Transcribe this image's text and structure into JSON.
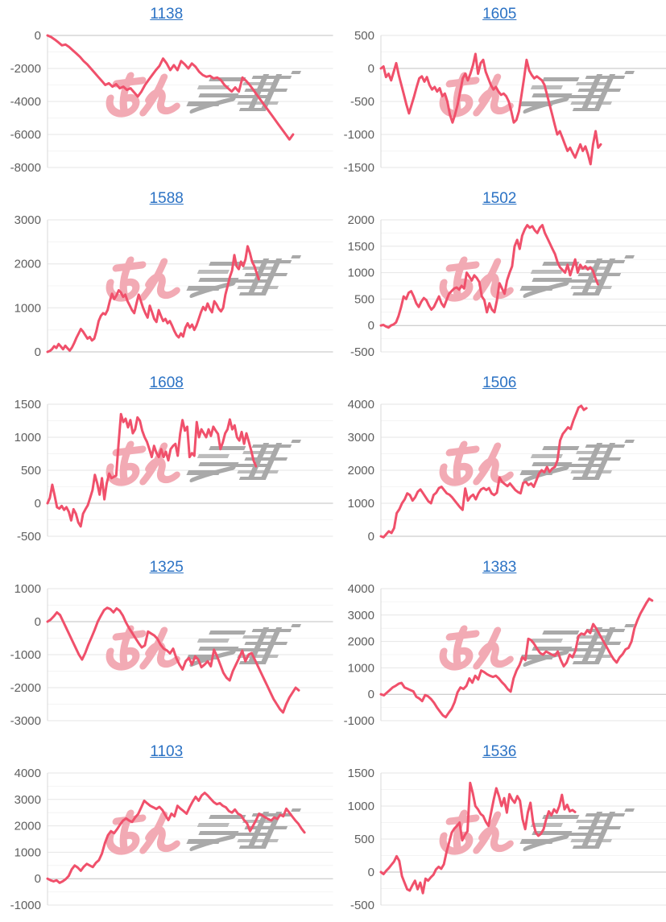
{
  "page": {
    "background": "#ffffff"
  },
  "colors": {
    "line": "#f0506b",
    "title_link": "#2b72c4",
    "axis_text": "#5f5f5f",
    "gridline": "#e6e6e6",
    "minor_gridline": "#f4f4f4",
    "zero_line": "#c0c0c0",
    "axis_line": "#d9d9d9",
    "watermark_pink": "#f2aab4",
    "watermark_gray": "#a9a9a9",
    "watermark_gray_light": "#bcbcbc"
  },
  "watermark": {
    "pink_text": "みん",
    "description": "pink-and-gray site logo watermark"
  },
  "chart_data": [
    {
      "type": "line",
      "title": "1138",
      "ylabel": "",
      "xlabel": "",
      "legend": false,
      "grid": true,
      "ylim": [
        -8000,
        0
      ],
      "yticks": [
        0,
        -2000,
        -4000,
        -6000,
        -8000
      ],
      "x_extent_frac": 0.86,
      "values": [
        0,
        -100,
        -250,
        -420,
        -600,
        -550,
        -700,
        -900,
        -1100,
        -1300,
        -1550,
        -1750,
        -2000,
        -2250,
        -2500,
        -2750,
        -3000,
        -2900,
        -3100,
        -2950,
        -3200,
        -3100,
        -3300,
        -3200,
        -3450,
        -3700,
        -3400,
        -3000,
        -2700,
        -2400,
        -2100,
        -1850,
        -1400,
        -1700,
        -2100,
        -1800,
        -2100,
        -1550,
        -1750,
        -2000,
        -1700,
        -1900,
        -2200,
        -2400,
        -2500,
        -2450,
        -2600,
        -2550,
        -2700,
        -3000,
        -3200,
        -3400,
        -3150,
        -3400,
        -2550,
        -2750,
        -3000,
        -3300,
        -3600,
        -3900,
        -4200,
        -4500,
        -4800,
        -5100,
        -5400,
        -5700,
        -6000,
        -6300,
        -6000
      ]
    },
    {
      "type": "line",
      "title": "1605",
      "ylabel": "",
      "xlabel": "",
      "legend": false,
      "grid": true,
      "ylim": [
        -1500,
        500
      ],
      "yticks": [
        500,
        0,
        -500,
        -1000,
        -1500
      ],
      "x_extent_frac": 0.77,
      "values": [
        0,
        30,
        -130,
        -80,
        -180,
        -50,
        80,
        -100,
        -250,
        -400,
        -550,
        -680,
        -550,
        -420,
        -280,
        -150,
        -120,
        -200,
        -130,
        -250,
        -320,
        -280,
        -350,
        -300,
        -420,
        -380,
        -500,
        -700,
        -820,
        -700,
        -550,
        -350,
        -150,
        -80,
        -180,
        -80,
        50,
        220,
        -80,
        80,
        130,
        -50,
        -150,
        -250,
        -320,
        -280,
        -350,
        -400,
        -380,
        -420,
        -500,
        -650,
        -820,
        -780,
        -650,
        -400,
        -150,
        130,
        -30,
        -100,
        -150,
        -120,
        -150,
        -180,
        -250,
        -400,
        -550,
        -700,
        -850,
        -1000,
        -950,
        -1050,
        -1150,
        -1250,
        -1200,
        -1280,
        -1350,
        -1250,
        -1150,
        -1250,
        -1180,
        -1300,
        -1450,
        -1150,
        -950,
        -1200,
        -1150
      ]
    },
    {
      "type": "line",
      "title": "1588",
      "ylabel": "",
      "xlabel": "",
      "legend": false,
      "grid": true,
      "ylim": [
        0,
        3000
      ],
      "yticks": [
        3000,
        2000,
        1000,
        0
      ],
      "x_extent_frac": 0.74,
      "values": [
        0,
        20,
        60,
        130,
        90,
        180,
        120,
        60,
        140,
        80,
        30,
        100,
        200,
        320,
        420,
        520,
        460,
        380,
        300,
        340,
        260,
        300,
        480,
        700,
        820,
        880,
        850,
        950,
        1150,
        1320,
        1200,
        1280,
        1400,
        1350,
        1250,
        1300,
        1150,
        1050,
        950,
        880,
        1100,
        1300,
        1150,
        1000,
        880,
        780,
        1050,
        900,
        750,
        680,
        950,
        820,
        700,
        750,
        650,
        700,
        600,
        480,
        380,
        330,
        420,
        350,
        550,
        650,
        550,
        620,
        500,
        600,
        750,
        900,
        1020,
        950,
        1100,
        980,
        900,
        1150,
        1080,
        980,
        920,
        1000,
        1300,
        1500,
        1700,
        1850,
        2200,
        1950,
        1880,
        2050,
        1950,
        2100,
        2400,
        2250,
        2050,
        1950,
        1800,
        1650
      ]
    },
    {
      "type": "line",
      "title": "1502",
      "ylabel": "",
      "xlabel": "",
      "legend": false,
      "grid": true,
      "ylim": [
        -500,
        2000
      ],
      "yticks": [
        2000,
        1500,
        1000,
        500,
        0,
        -500
      ],
      "x_extent_frac": 0.76,
      "values": [
        0,
        10,
        -20,
        -40,
        0,
        20,
        60,
        180,
        350,
        550,
        500,
        620,
        650,
        550,
        420,
        350,
        450,
        520,
        480,
        380,
        300,
        350,
        450,
        550,
        420,
        350,
        480,
        600,
        650,
        700,
        720,
        680,
        750,
        700,
        1000,
        930,
        850,
        950,
        900,
        820,
        550,
        480,
        250,
        420,
        300,
        250,
        480,
        800,
        700,
        600,
        850,
        1000,
        1120,
        1500,
        1620,
        1450,
        1700,
        1820,
        1900,
        1850,
        1880,
        1800,
        1750,
        1850,
        1900,
        1750,
        1650,
        1550,
        1450,
        1350,
        1200,
        1100,
        1050,
        1000,
        1150,
        950,
        1100,
        1250,
        1000,
        1150,
        1080,
        1120,
        1060,
        1100,
        1040,
        900,
        780
      ]
    },
    {
      "type": "line",
      "title": "1608",
      "ylabel": "",
      "xlabel": "",
      "legend": false,
      "grid": true,
      "ylim": [
        -500,
        1500
      ],
      "yticks": [
        1500,
        1000,
        500,
        0,
        -500
      ],
      "x_extent_frac": 0.73,
      "values": [
        0,
        80,
        280,
        120,
        -60,
        -80,
        -40,
        -100,
        -60,
        -130,
        -260,
        -90,
        -160,
        -290,
        -350,
        -160,
        -90,
        -30,
        80,
        200,
        430,
        300,
        130,
        380,
        60,
        300,
        450,
        380,
        400,
        420,
        900,
        1350,
        1230,
        1280,
        1150,
        1260,
        1060,
        1120,
        1300,
        1250,
        1100,
        1000,
        930,
        820,
        700,
        870,
        760,
        700,
        820,
        700,
        780,
        650,
        820,
        870,
        900,
        720,
        1050,
        1260,
        1100,
        1160,
        700,
        760,
        720,
        1230,
        1000,
        1120,
        1060,
        1000,
        1120,
        1020,
        1160,
        1100,
        1050,
        820,
        920,
        1060,
        1120,
        1270,
        1120,
        1180,
        1000,
        950,
        1080,
        900,
        1060,
        930,
        800,
        650,
        560
      ]
    },
    {
      "type": "line",
      "title": "1506",
      "ylabel": "",
      "xlabel": "",
      "legend": false,
      "grid": true,
      "ylim": [
        0,
        4000
      ],
      "yticks": [
        4000,
        3000,
        2000,
        1000,
        0
      ],
      "x_extent_frac": 0.72,
      "values": [
        0,
        -30,
        60,
        150,
        100,
        250,
        700,
        820,
        1000,
        1120,
        1300,
        1250,
        1080,
        1180,
        1350,
        1420,
        1300,
        1180,
        1060,
        1000,
        1250,
        1320,
        1460,
        1500,
        1400,
        1300,
        1260,
        1180,
        1080,
        980,
        880,
        800,
        1450,
        1080,
        1200,
        1260,
        1120,
        1300,
        1420,
        1460,
        1400,
        1460,
        1300,
        1250,
        1320,
        1780,
        1650,
        1580,
        1520,
        1600,
        1500,
        1400,
        1340,
        1300,
        1620,
        1650,
        1550,
        1600,
        1500,
        1700,
        1900,
        2000,
        1940,
        2100,
        1950,
        2050,
        2100,
        2300,
        2900,
        3100,
        3200,
        3300,
        3250,
        3500,
        3700,
        3900,
        3950,
        3830,
        3880
      ]
    },
    {
      "type": "line",
      "title": "1325",
      "ylabel": "",
      "xlabel": "",
      "legend": false,
      "grid": true,
      "ylim": [
        -3000,
        1000
      ],
      "yticks": [
        1000,
        0,
        -1000,
        -2000,
        -3000
      ],
      "x_extent_frac": 0.88,
      "values": [
        0,
        60,
        160,
        280,
        200,
        0,
        -200,
        -400,
        -600,
        -800,
        -1000,
        -1150,
        -950,
        -700,
        -480,
        -250,
        0,
        180,
        350,
        420,
        380,
        280,
        400,
        330,
        180,
        -30,
        -200,
        -350,
        -500,
        -650,
        -780,
        -720,
        -300,
        -360,
        -420,
        -520,
        -700,
        -820,
        -870,
        -960,
        -820,
        -1100,
        -1300,
        -1450,
        -1200,
        -1100,
        -1300,
        -1050,
        -1150,
        -1380,
        -1300,
        -1200,
        -1350,
        -850,
        -1050,
        -1300,
        -1550,
        -1700,
        -1780,
        -1500,
        -1300,
        -1100,
        -880,
        -1200,
        -1000,
        -950,
        -1150,
        -1350,
        -1550,
        -1750,
        -1950,
        -2150,
        -2350,
        -2500,
        -2650,
        -2750,
        -2500,
        -2300,
        -2150,
        -2000,
        -2080
      ]
    },
    {
      "type": "line",
      "title": "1383",
      "ylabel": "",
      "xlabel": "",
      "legend": false,
      "grid": true,
      "ylim": [
        -1000,
        4000
      ],
      "yticks": [
        4000,
        3000,
        2000,
        1000,
        0,
        -1000
      ],
      "x_extent_frac": 0.95,
      "values": [
        0,
        -40,
        60,
        160,
        260,
        320,
        400,
        430,
        260,
        210,
        160,
        110,
        -90,
        -160,
        -260,
        -30,
        -80,
        -180,
        -320,
        -500,
        -650,
        -800,
        -870,
        -700,
        -550,
        -300,
        80,
        260,
        200,
        320,
        600,
        440,
        700,
        560,
        900,
        840,
        760,
        700,
        660,
        700,
        600,
        460,
        350,
        200,
        100,
        600,
        900,
        1100,
        1400,
        1300,
        2100,
        2050,
        1900,
        1720,
        1560,
        1500,
        1620,
        1560,
        1500,
        1460,
        1620,
        1300,
        1060,
        1200,
        1500,
        1400,
        1660,
        2200,
        2300,
        2260,
        2420,
        2320,
        2660,
        2500,
        2300,
        2100,
        1900,
        1700,
        1500,
        1320,
        1200,
        1400,
        1520,
        1700,
        1760,
        2000,
        2500,
        2800,
        3050,
        3250,
        3450,
        3620,
        3550
      ]
    },
    {
      "type": "line",
      "title": "1103",
      "ylabel": "",
      "xlabel": "",
      "legend": false,
      "grid": true,
      "ylim": [
        -1000,
        4000
      ],
      "yticks": [
        4000,
        3000,
        2000,
        1000,
        0,
        -1000
      ],
      "x_extent_frac": 0.9,
      "values": [
        0,
        -60,
        -100,
        -60,
        -160,
        -100,
        -20,
        100,
        350,
        500,
        420,
        300,
        450,
        560,
        500,
        440,
        600,
        700,
        950,
        1350,
        1650,
        1800,
        1720,
        1870,
        2050,
        2200,
        2280,
        2200,
        2150,
        2320,
        2450,
        2700,
        2950,
        2850,
        2760,
        2700,
        2640,
        2720,
        2600,
        2400,
        2220,
        2460,
        2360,
        2760,
        2650,
        2560,
        2460,
        2700,
        2920,
        3100,
        2950,
        3150,
        3250,
        3150,
        3020,
        2900,
        2820,
        2860,
        2760,
        2700,
        2560,
        2500,
        2620,
        2460,
        2400,
        2220,
        2100,
        1800,
        2000,
        2220,
        2460,
        2400,
        2320,
        2260,
        2200,
        2320,
        2260,
        2420,
        2360,
        2650,
        2500,
        2350,
        2200,
        2080,
        1900,
        1750
      ]
    },
    {
      "type": "line",
      "title": "1536",
      "ylabel": "",
      "xlabel": "",
      "legend": false,
      "grid": true,
      "ylim": [
        -500,
        1500
      ],
      "yticks": [
        1500,
        1000,
        500,
        0,
        -500
      ],
      "x_extent_frac": 0.68,
      "values": [
        0,
        -30,
        20,
        60,
        110,
        160,
        240,
        170,
        -60,
        -160,
        -260,
        -280,
        -200,
        -130,
        -260,
        -160,
        -320,
        -100,
        -130,
        -80,
        -40,
        40,
        80,
        50,
        120,
        300,
        450,
        600,
        660,
        700,
        750,
        480,
        560,
        620,
        1350,
        1200,
        1000,
        950,
        880,
        850,
        760,
        700,
        900,
        1100,
        1270,
        1150,
        1000,
        1120,
        900,
        1180,
        1100,
        1050,
        1150,
        1080,
        800,
        650,
        900,
        1050,
        760,
        600,
        550,
        580,
        650,
        800,
        920,
        860,
        950,
        900,
        1000,
        1170,
        950,
        1020,
        920,
        940,
        910
      ]
    }
  ]
}
